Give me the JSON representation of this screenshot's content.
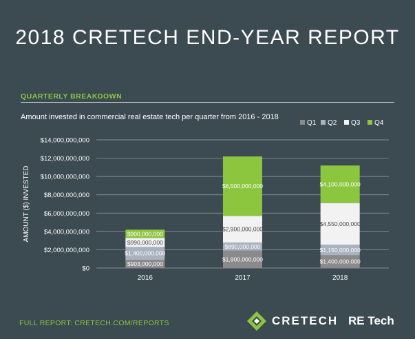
{
  "report": {
    "title": "2018 CRETECH END-YEAR REPORT",
    "section_title": "QUARTERLY BREAKDOWN",
    "footer_link": "FULL REPORT: CRETECH.COM/REPORTS",
    "brand_name": "CRETECH",
    "partner_logo_text": "RE Tech"
  },
  "colors": {
    "background": "#3c4a52",
    "accent": "#8cc63f",
    "Q1": "#8a8a8a",
    "Q2": "#aab2c0",
    "Q3": "#f2f2f2",
    "Q4": "#8cc63f"
  },
  "chart_data": {
    "type": "bar",
    "stacked": true,
    "title": "Amount invested in commercial real estate tech per quarter from 2016 - 2018",
    "xlabel": "",
    "ylabel": "AMOUNT ($) INVESTED",
    "ylim": [
      0,
      14000000000
    ],
    "y_ticks": [
      "$0",
      "$2,000,000,000",
      "$4,000,000,000",
      "$6,000,000,000",
      "$8,000,000,000",
      "$10,000,000,000",
      "$12,000,000,000",
      "$14,000,000,000"
    ],
    "y_tick_values": [
      0,
      2000000000,
      4000000000,
      6000000000,
      8000000000,
      10000000000,
      12000000000,
      14000000000
    ],
    "grid": true,
    "legend_position": "top-right",
    "categories": [
      "2016",
      "2017",
      "2018"
    ],
    "series": [
      {
        "name": "Q1",
        "values": [
          903000000,
          1900000000,
          1400000000
        ],
        "labels": [
          "$903,000,000",
          "$1,900,000,000",
          "$1,400,000,000"
        ]
      },
      {
        "name": "Q2",
        "values": [
          1400000000,
          890000000,
          1150000000
        ],
        "labels": [
          "$1,400,000,000",
          "$890,000,000",
          "$1,150,000,000"
        ]
      },
      {
        "name": "Q3",
        "values": [
          990000000,
          2900000000,
          4550000000
        ],
        "labels": [
          "$990,000,000",
          "$2,900,000,000",
          "$4,550,000,000"
        ]
      },
      {
        "name": "Q4",
        "values": [
          900000000,
          6500000000,
          4100000000
        ],
        "labels": [
          "$900,000,000",
          "$6,500,000,000",
          "$4,100,000,000"
        ]
      }
    ]
  }
}
